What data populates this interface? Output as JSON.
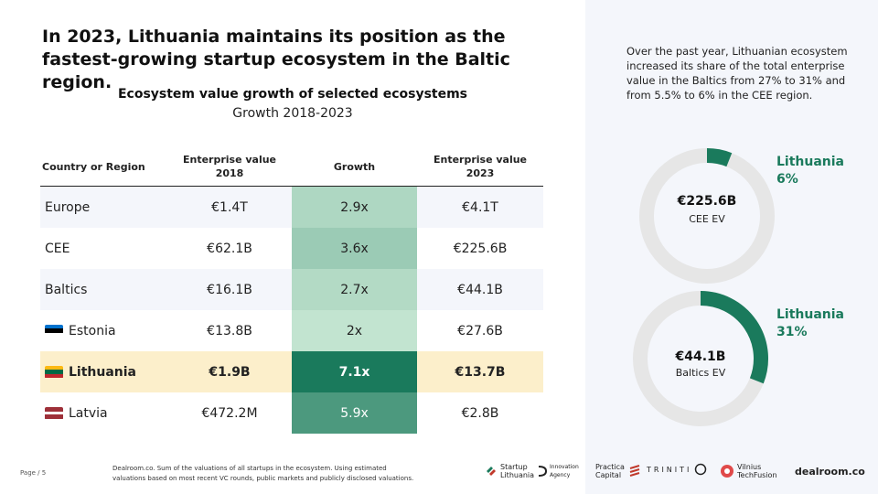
{
  "headline": "In 2023, Lithuania maintains its position as the fastest-growing startup ecosystem in the Baltic region.",
  "chart_data": [
    {
      "type": "table",
      "title": "Ecosystem value growth of selected ecosystems",
      "subtitle": "Growth 2018-2023",
      "columns": [
        "Country or Region",
        "Enterprise value 2018",
        "Growth",
        "Enterprise value 2023"
      ],
      "rows": [
        {
          "name": "Europe",
          "flag": "",
          "ev2018": "€1.4T",
          "growth": "2.9x",
          "growth_value": 2.9,
          "ev2023": "€4.1T",
          "highlight": false
        },
        {
          "name": "CEE",
          "flag": "",
          "ev2018": "€62.1B",
          "growth": "3.6x",
          "growth_value": 3.6,
          "ev2023": "€225.6B",
          "highlight": false
        },
        {
          "name": "Baltics",
          "flag": "",
          "ev2018": "€16.1B",
          "growth": "2.7x",
          "growth_value": 2.7,
          "ev2023": "€44.1B",
          "highlight": false
        },
        {
          "name": "Estonia",
          "flag": "estonia-flag-icon",
          "ev2018": "€13.8B",
          "growth": "2x",
          "growth_value": 2.0,
          "ev2023": "€27.6B",
          "highlight": false
        },
        {
          "name": "Lithuania",
          "flag": "lithuania-flag-icon",
          "ev2018": "€1.9B",
          "growth": "7.1x",
          "growth_value": 7.1,
          "ev2023": "€13.7B",
          "highlight": true
        },
        {
          "name": "Latvia",
          "flag": "latvia-flag-icon",
          "ev2018": "€472.2M",
          "growth": "5.9x",
          "growth_value": 5.9,
          "ev2023": "€2.8B",
          "highlight": false
        }
      ]
    },
    {
      "type": "pie",
      "variant": "donut",
      "center_value": "€225.6B",
      "center_label": "CEE EV",
      "slices": [
        {
          "label": "Lithuania",
          "value": 6,
          "display": "6%"
        }
      ],
      "label_line1": "Lithuania",
      "label_line2": "6%"
    },
    {
      "type": "pie",
      "variant": "donut",
      "center_value": "€44.1B",
      "center_label": "Baltics EV",
      "slices": [
        {
          "label": "Lithuania",
          "value": 31,
          "display": "31%"
        }
      ],
      "label_line1": "Lithuania",
      "label_line2": "31%"
    }
  ],
  "side_text": "Over the past year, Lithuanian ecosystem increased its share of the total enterprise value in the Baltics from 27% to 31% and from 5.5% to 6% in the CEE region.",
  "footer": {
    "page": "Page / 5",
    "source": "Dealroom.co. Sum of the valuations of all startups in the ecosystem. Using estimated valuations based on most recent VC rounds, public markets and publicly disclosed valuations."
  },
  "logos": {
    "startup_lithuania": "Startup Lithuania",
    "innovation_agency": "Innovation Agency",
    "practica": "Practica Capital",
    "triniti": "TRINITI",
    "vilnius": "Vilnius TechFusion",
    "dealroom": "dealroom.co"
  },
  "colors": {
    "accent_green": "#1a7a5c",
    "donut_track": "#e6e6e6",
    "highlight_row": "#fcefcb",
    "shade_row": "#f4f6fb",
    "side_panel": "#f4f6fb"
  }
}
